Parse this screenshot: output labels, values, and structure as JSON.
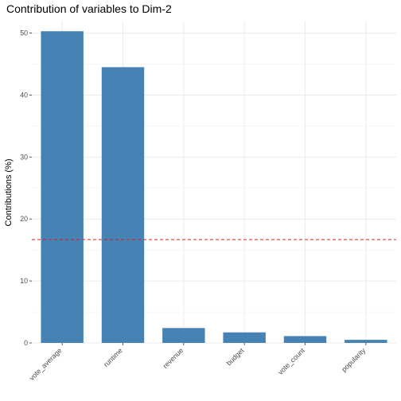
{
  "chart_data": {
    "type": "bar",
    "title": "Contribution of variables to Dim-2",
    "xlabel": "",
    "ylabel": "Contributions (%)",
    "categories": [
      "vote_average",
      "runtime",
      "revenue",
      "budget",
      "vote_count",
      "popularity"
    ],
    "values": [
      50.3,
      44.5,
      2.4,
      1.7,
      1.1,
      0.5
    ],
    "ylim": [
      0,
      52
    ],
    "yticks": [
      "0",
      "10",
      "20",
      "30",
      "40",
      "50"
    ],
    "reference_line": 16.67,
    "grid": true,
    "bar_color": "#4682B4",
    "reference_color": "#E41A1C"
  }
}
